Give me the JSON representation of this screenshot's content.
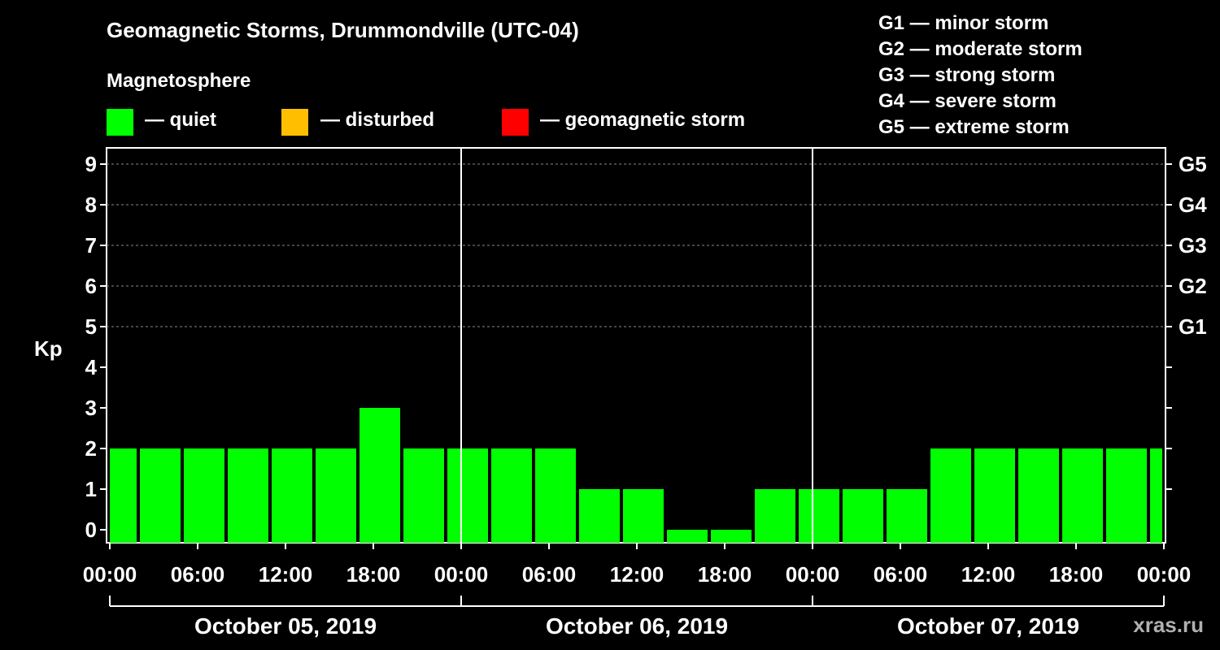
{
  "header": {
    "title": "Geomagnetic Storms, Drummondville (UTC-04)",
    "subtitle": "Magnetosphere"
  },
  "legend": [
    {
      "color": "#00ff00",
      "label": "— quiet"
    },
    {
      "color": "#ffbf00",
      "label": "— disturbed"
    },
    {
      "color": "#ff0000",
      "label": "— geomagnetic storm"
    }
  ],
  "storm_scale": [
    "G1 — minor storm",
    "G2 — moderate storm",
    "G3 — strong storm",
    "G4 — severe storm",
    "G5 — extreme storm"
  ],
  "credit": "xras.ru",
  "chart_data": {
    "type": "bar",
    "ylabel": "Kp",
    "ylim": [
      0,
      9
    ],
    "yticks": [
      "0",
      "1",
      "2",
      "3",
      "4",
      "5",
      "6",
      "7",
      "8",
      "9"
    ],
    "right_ticks": [
      {
        "kp": 5,
        "label": "G1"
      },
      {
        "kp": 6,
        "label": "G2"
      },
      {
        "kp": 7,
        "label": "G3"
      },
      {
        "kp": 8,
        "label": "G4"
      },
      {
        "kp": 9,
        "label": "G5"
      }
    ],
    "grid": "dashed at Kp 5-9",
    "xticks": [
      "00:00",
      "06:00",
      "12:00",
      "18:00",
      "00:00",
      "06:00",
      "12:00",
      "18:00",
      "00:00",
      "06:00",
      "12:00",
      "18:00",
      "00:00"
    ],
    "days": [
      "October 05, 2019",
      "October 06, 2019",
      "October 07, 2019"
    ],
    "bar_interval_hours": 3,
    "bars": [
      {
        "start": -1,
        "value": 2
      },
      {
        "start": 2,
        "value": 2
      },
      {
        "start": 5,
        "value": 2
      },
      {
        "start": 8,
        "value": 2
      },
      {
        "start": 11,
        "value": 2
      },
      {
        "start": 14,
        "value": 2
      },
      {
        "start": 17,
        "value": 3
      },
      {
        "start": 20,
        "value": 2
      },
      {
        "start": 23,
        "value": 2
      },
      {
        "start": 26,
        "value": 2
      },
      {
        "start": 29,
        "value": 2
      },
      {
        "start": 32,
        "value": 1
      },
      {
        "start": 35,
        "value": 1
      },
      {
        "start": 38,
        "value": 0
      },
      {
        "start": 41,
        "value": 0
      },
      {
        "start": 44,
        "value": 1
      },
      {
        "start": 47,
        "value": 1
      },
      {
        "start": 50,
        "value": 1
      },
      {
        "start": 53,
        "value": 1
      },
      {
        "start": 56,
        "value": 2
      },
      {
        "start": 59,
        "value": 2
      },
      {
        "start": 62,
        "value": 2
      },
      {
        "start": 65,
        "value": 2
      },
      {
        "start": 68,
        "value": 2
      },
      {
        "start": 71,
        "value": 2
      }
    ],
    "colors": {
      "quiet": "#00ff00",
      "disturbed": "#ffbf00",
      "storm": "#ff0000"
    }
  }
}
